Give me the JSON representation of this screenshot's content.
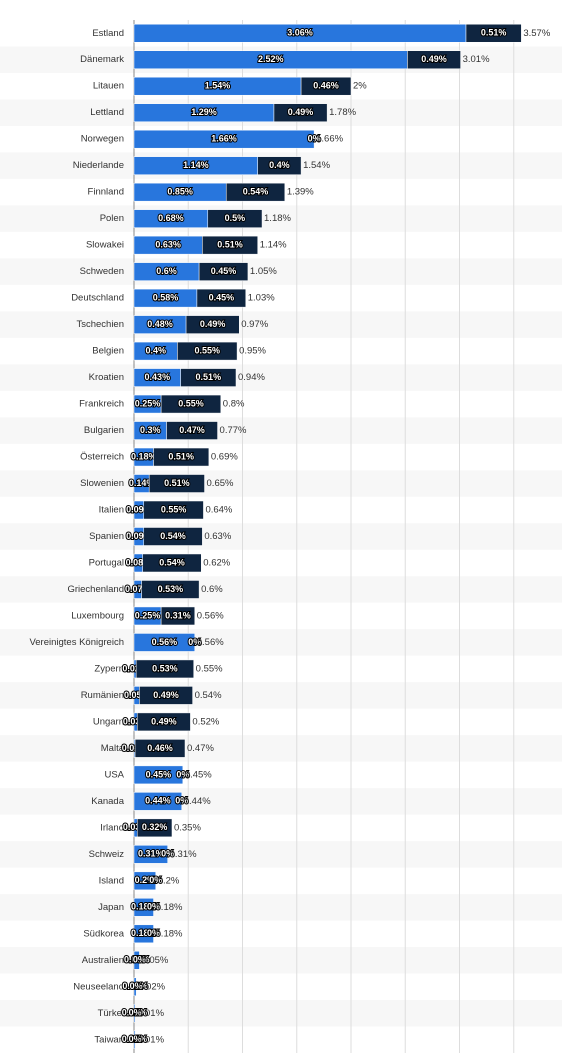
{
  "chart_data": {
    "type": "stacked-bar",
    "orientation": "horizontal",
    "categories": [
      "Estland",
      "Dänemark",
      "Litauen",
      "Lettland",
      "Norwegen",
      "Niederlande",
      "Finnland",
      "Polen",
      "Slowakei",
      "Schweden",
      "Deutschland",
      "Tschechien",
      "Belgien",
      "Kroatien",
      "Frankreich",
      "Bulgarien",
      "Österreich",
      "Slowenien",
      "Italien",
      "Spanien",
      "Portugal",
      "Griechenland",
      "Luxembourg",
      "Vereinigtes Königreich",
      "Zypern",
      "Rumänien",
      "Ungarn",
      "Malta",
      "USA",
      "Kanada",
      "Irland",
      "Schweiz",
      "Island",
      "Japan",
      "Südkorea",
      "Australien",
      "Neuseeland",
      "Türkei",
      "Taiwan"
    ],
    "series": [
      {
        "color": "#2876dd",
        "values": [
          3.06,
          2.52,
          1.54,
          1.29,
          1.66,
          1.14,
          0.85,
          0.68,
          0.63,
          0.6,
          0.58,
          0.48,
          0.4,
          0.43,
          0.25,
          0.3,
          0.18,
          0.14,
          0.09,
          0.09,
          0.08,
          0.07,
          0.25,
          0.56,
          0.02,
          0.05,
          0.03,
          0.01,
          0.45,
          0.44,
          0.03,
          0.31,
          0.2,
          0.18,
          0.18,
          0.05,
          0.02,
          0.01,
          0.01
        ],
        "value_labels": [
          "3.06%",
          "2.52%",
          "1.54%",
          "1.29%",
          "1.66%",
          "1.14%",
          "0.85%",
          "0.68%",
          "0.63%",
          "0.6%",
          "0.58%",
          "0.48%",
          "0.4%",
          "0.43%",
          "0.25%",
          "0.3%",
          "0.18%",
          "0.14%",
          "0.09%",
          "0.09%",
          "0.08%",
          "0.07%",
          "0.25%",
          "0.56%",
          "0.02%",
          "0.05%",
          "0.03%",
          "0.01%",
          "0.45%",
          "0.44%",
          "0.03%",
          "0.31%",
          "0.2%",
          "0.18%",
          "0.18%",
          "0.05%",
          "0.02%",
          "0.01%",
          "0.01%"
        ]
      },
      {
        "color": "#0f2540",
        "values": [
          0.51,
          0.49,
          0.46,
          0.49,
          0,
          0.4,
          0.54,
          0.5,
          0.51,
          0.45,
          0.45,
          0.49,
          0.55,
          0.51,
          0.55,
          0.47,
          0.51,
          0.51,
          0.55,
          0.54,
          0.54,
          0.53,
          0.31,
          0,
          0.53,
          0.49,
          0.49,
          0.46,
          0,
          0,
          0.32,
          0,
          0,
          0,
          0,
          0,
          0,
          0,
          0
        ],
        "value_labels": [
          "0.51%",
          "0.49%",
          "0.46%",
          "0.49%",
          "0%",
          "0.4%",
          "0.54%",
          "0.5%",
          "0.51%",
          "0.45%",
          "0.45%",
          "0.49%",
          "0.55%",
          "0.51%",
          "0.55%",
          "0.47%",
          "0.51%",
          "0.51%",
          "0.55%",
          "0.54%",
          "0.54%",
          "0.53%",
          "0.31%",
          "0%",
          "0.53%",
          "0.49%",
          "0.49%",
          "0.46%",
          "0%",
          "0%",
          "0.32%",
          "0%",
          "0%",
          "0%",
          "0%",
          "0%",
          "0%",
          "0%",
          "0%"
        ]
      }
    ],
    "totals": [
      3.57,
      3.01,
      2,
      1.78,
      1.66,
      1.54,
      1.39,
      1.18,
      1.14,
      1.05,
      1.03,
      0.97,
      0.95,
      0.94,
      0.8,
      0.77,
      0.69,
      0.65,
      0.64,
      0.63,
      0.62,
      0.6,
      0.56,
      0.56,
      0.55,
      0.54,
      0.52,
      0.47,
      0.45,
      0.44,
      0.35,
      0.31,
      0.2,
      0.18,
      0.18,
      0.05,
      0.02,
      0.01,
      0.01
    ],
    "total_labels": [
      "3.57%",
      "3.01%",
      "2%",
      "1.78%",
      "1.66%",
      "1.54%",
      "1.39%",
      "1.18%",
      "1.14%",
      "1.05%",
      "1.03%",
      "0.97%",
      "0.95%",
      "0.94%",
      "0.8%",
      "0.77%",
      "0.69%",
      "0.65%",
      "0.64%",
      "0.63%",
      "0.62%",
      "0.6%",
      "0.56%",
      "0.56%",
      "0.55%",
      "0.54%",
      "0.52%",
      "0.47%",
      "0.45%",
      "0.44%",
      "0.35%",
      "0.31%",
      "0.2%",
      "0.18%",
      "0.18%",
      "0.05%",
      "0.02%",
      "0.01%",
      "0.01%"
    ],
    "xlim": [
      0,
      3.9
    ],
    "xticks": [
      0,
      0.5,
      1,
      1.5,
      2,
      2.5,
      3,
      3.5
    ],
    "grid": true
  }
}
